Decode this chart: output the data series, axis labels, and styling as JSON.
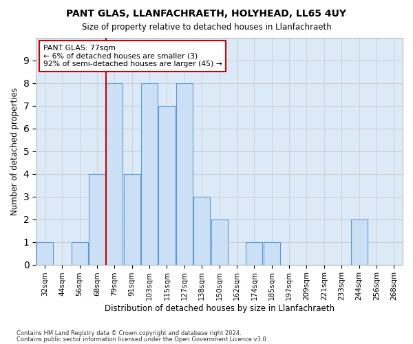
{
  "title1": "PANT GLAS, LLANFACHRAETH, HOLYHEAD, LL65 4UY",
  "title2": "Size of property relative to detached houses in Llanfachraeth",
  "xlabel": "Distribution of detached houses by size in Llanfachraeth",
  "ylabel": "Number of detached properties",
  "footer1": "Contains HM Land Registry data © Crown copyright and database right 2024.",
  "footer2": "Contains public sector information licensed under the Open Government Licence v3.0.",
  "bins": [
    "32sqm",
    "44sqm",
    "56sqm",
    "68sqm",
    "79sqm",
    "91sqm",
    "103sqm",
    "115sqm",
    "127sqm",
    "138sqm",
    "150sqm",
    "162sqm",
    "174sqm",
    "185sqm",
    "197sqm",
    "209sqm",
    "221sqm",
    "233sqm",
    "244sqm",
    "256sqm",
    "268sqm"
  ],
  "values": [
    1,
    0,
    1,
    4,
    8,
    4,
    8,
    7,
    8,
    3,
    2,
    0,
    1,
    1,
    0,
    0,
    0,
    0,
    2,
    0,
    0
  ],
  "bar_color": "#cce0f5",
  "bar_edge_color": "#5b9bd5",
  "annotation_line1": "PANT GLAS: 77sqm",
  "annotation_line2": "← 6% of detached houses are smaller (3)",
  "annotation_line3": "92% of semi-detached houses are larger (45) →",
  "annotation_box_color": "#ffffff",
  "annotation_box_edge": "#cc0000",
  "vline_color": "#cc0000",
  "vline_bin_index": 4,
  "grid_color": "#cccccc",
  "background_color": "#dce9f7",
  "ylim": [
    0,
    10
  ],
  "yticks": [
    0,
    1,
    2,
    3,
    4,
    5,
    6,
    7,
    8,
    9
  ]
}
